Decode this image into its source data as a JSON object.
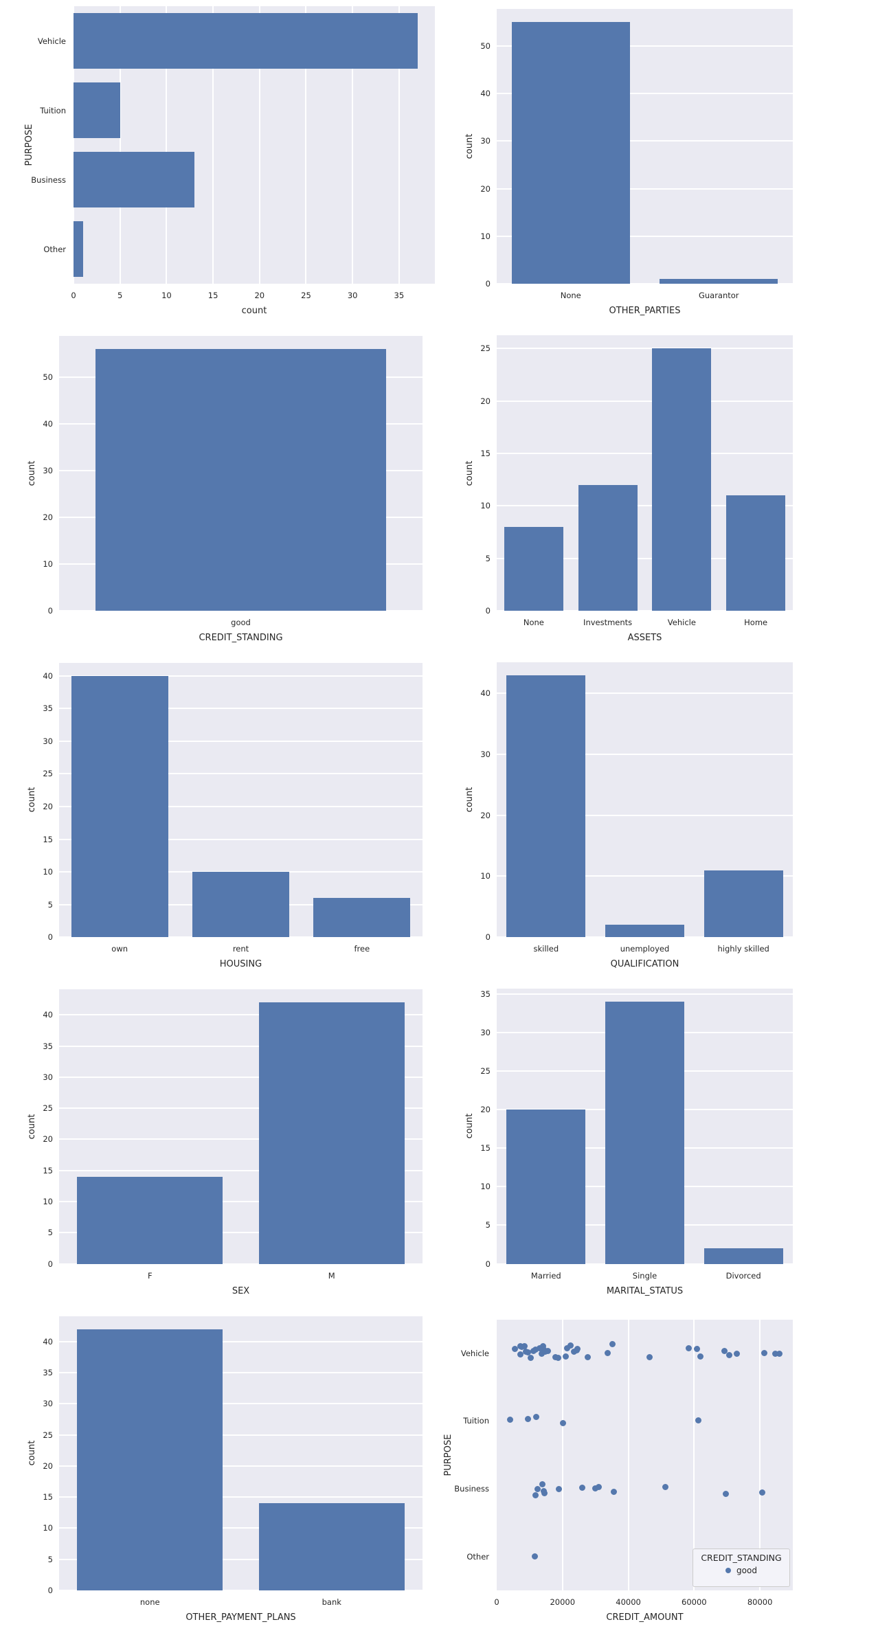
{
  "style": {
    "bar_color": "#5578ad",
    "dot_color": "#5578ad",
    "plot_bg": "#eaeaf2",
    "grid_color": "#ffffff",
    "text_color": "#262626",
    "legend_bg": "#f3f3f9",
    "legend_border": "#cccccc",
    "figure_bg": "#ffffff"
  },
  "chart_data": [
    {
      "type": "bar",
      "orientation": "horizontal",
      "categories": [
        "Vehicle",
        "Tuition",
        "Business",
        "Other"
      ],
      "values": [
        37,
        5,
        13,
        1
      ],
      "xlabel": "count",
      "ylabel": "PURPOSE",
      "xticks": [
        0,
        5,
        10,
        15,
        20,
        25,
        30,
        35
      ],
      "xlim": [
        0,
        38.85
      ],
      "grid": "vertical"
    },
    {
      "type": "bar",
      "orientation": "vertical",
      "categories": [
        "None",
        "Guarantor"
      ],
      "values": [
        55,
        1
      ],
      "xlabel": "OTHER_PARTIES",
      "ylabel": "count",
      "yticks": [
        0,
        10,
        20,
        30,
        40,
        50
      ],
      "ylim": [
        0,
        57.75
      ],
      "grid": "horizontal"
    },
    {
      "type": "bar",
      "orientation": "vertical",
      "categories": [
        "good"
      ],
      "values": [
        56
      ],
      "xlabel": "CREDIT_STANDING",
      "ylabel": "count",
      "yticks": [
        0,
        10,
        20,
        30,
        40,
        50
      ],
      "ylim": [
        0,
        58.8
      ],
      "grid": "horizontal"
    },
    {
      "type": "bar",
      "orientation": "vertical",
      "categories": [
        "None",
        "Investments",
        "Vehicle",
        "Home"
      ],
      "values": [
        8,
        12,
        25,
        11
      ],
      "xlabel": "ASSETS",
      "ylabel": "count",
      "yticks": [
        0,
        5,
        10,
        15,
        20,
        25
      ],
      "ylim": [
        0,
        26.25
      ],
      "grid": "horizontal"
    },
    {
      "type": "bar",
      "orientation": "vertical",
      "categories": [
        "own",
        "rent",
        "free"
      ],
      "values": [
        40,
        10,
        6
      ],
      "xlabel": "HOUSING",
      "ylabel": "count",
      "yticks": [
        0,
        5,
        10,
        15,
        20,
        25,
        30,
        35,
        40
      ],
      "ylim": [
        0,
        42
      ],
      "grid": "horizontal"
    },
    {
      "type": "bar",
      "orientation": "vertical",
      "categories": [
        "skilled",
        "unemployed",
        "highly skilled"
      ],
      "values": [
        43,
        2,
        11
      ],
      "xlabel": "QUALIFICATION",
      "ylabel": "count",
      "yticks": [
        0,
        10,
        20,
        30,
        40
      ],
      "ylim": [
        0,
        45.15
      ],
      "grid": "horizontal"
    },
    {
      "type": "bar",
      "orientation": "vertical",
      "categories": [
        "F",
        "M"
      ],
      "values": [
        14,
        42
      ],
      "xlabel": "SEX",
      "ylabel": "count",
      "yticks": [
        0,
        5,
        10,
        15,
        20,
        25,
        30,
        35,
        40
      ],
      "ylim": [
        0,
        44.1
      ],
      "grid": "horizontal"
    },
    {
      "type": "bar",
      "orientation": "vertical",
      "categories": [
        "Married",
        "Single",
        "Divorced"
      ],
      "values": [
        20,
        34,
        2
      ],
      "xlabel": "MARITAL_STATUS",
      "ylabel": "count",
      "yticks": [
        0,
        5,
        10,
        15,
        20,
        25,
        30,
        35
      ],
      "ylim": [
        0,
        35.7
      ],
      "grid": "horizontal"
    },
    {
      "type": "bar",
      "orientation": "vertical",
      "categories": [
        "none",
        "bank"
      ],
      "values": [
        42,
        14
      ],
      "xlabel": "OTHER_PAYMENT_PLANS",
      "ylabel": "count",
      "yticks": [
        0,
        5,
        10,
        15,
        20,
        25,
        30,
        35,
        40
      ],
      "ylim": [
        0,
        44.1
      ],
      "grid": "horizontal"
    },
    {
      "type": "scatter",
      "xlabel": "CREDIT_AMOUNT",
      "ylabel": "PURPOSE",
      "categories": [
        "Vehicle",
        "Tuition",
        "Business",
        "Other"
      ],
      "xticks": [
        0,
        20000,
        40000,
        60000,
        80000
      ],
      "xlim": [
        0,
        90000
      ],
      "grid": "vertical",
      "legend": {
        "title": "CREDIT_STANDING",
        "entries": [
          {
            "label": "good",
            "marker": "dot"
          }
        ]
      },
      "points": {
        "Vehicle": [
          [
            5600,
            -6
          ],
          [
            7100,
            -10
          ],
          [
            7700,
            -9
          ],
          [
            8400,
            -10
          ],
          [
            7300,
            2
          ],
          [
            8800,
            -2
          ],
          [
            9400,
            -1
          ],
          [
            10400,
            7
          ],
          [
            11100,
            -3
          ],
          [
            11900,
            -5
          ],
          [
            13000,
            -7
          ],
          [
            13600,
            1
          ],
          [
            14000,
            -10
          ],
          [
            14400,
            -5
          ],
          [
            14800,
            -2
          ],
          [
            15500,
            -3
          ],
          [
            17800,
            6
          ],
          [
            18600,
            7
          ],
          [
            20900,
            5
          ],
          [
            21300,
            -7
          ],
          [
            22400,
            -11
          ],
          [
            23400,
            -2
          ],
          [
            24300,
            -4
          ],
          [
            24500,
            -6
          ],
          [
            27600,
            6
          ],
          [
            33700,
            0
          ],
          [
            35100,
            -13
          ],
          [
            46400,
            6
          ],
          [
            58300,
            -7
          ],
          [
            60800,
            -6
          ],
          [
            61900,
            5
          ],
          [
            69200,
            -3
          ],
          [
            70600,
            3
          ],
          [
            73000,
            1
          ],
          [
            81300,
            0
          ],
          [
            84700,
            1
          ],
          [
            85900,
            1
          ]
        ],
        "Tuition": [
          [
            4000,
            -2
          ],
          [
            9400,
            -3
          ],
          [
            12100,
            -6
          ],
          [
            20100,
            3
          ],
          [
            61200,
            -1
          ]
        ],
        "Business": [
          [
            11700,
            9
          ],
          [
            12500,
            0
          ],
          [
            13800,
            -7
          ],
          [
            14200,
            3
          ],
          [
            14600,
            6
          ],
          [
            19000,
            0
          ],
          [
            26100,
            -2
          ],
          [
            29900,
            -1
          ],
          [
            31100,
            -3
          ],
          [
            35500,
            4
          ],
          [
            51200,
            -3
          ],
          [
            69600,
            7
          ],
          [
            80700,
            5
          ]
        ],
        "Other": [
          [
            11500,
            0
          ]
        ]
      }
    }
  ]
}
